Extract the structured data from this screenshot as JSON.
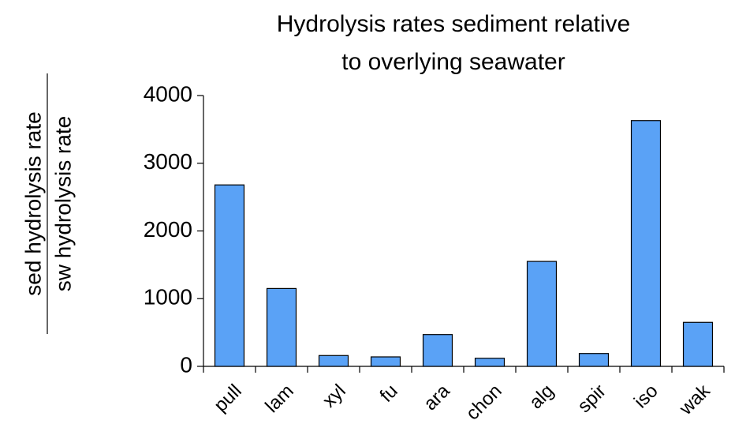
{
  "chart_data": {
    "type": "bar",
    "title": [
      "Hydrolysis rates sediment relative",
      "to overlying seawater"
    ],
    "ylabel": [
      "sed hydrolysis rate",
      "sw hydrolysis rate"
    ],
    "categories": [
      "pull",
      "lam",
      "xyl",
      "fu",
      "ara",
      "chon",
      "alg",
      "spir",
      "iso",
      "wak"
    ],
    "values": [
      2680,
      1150,
      160,
      140,
      470,
      120,
      1550,
      190,
      3630,
      650
    ],
    "color": "#5aa2f6",
    "ylim": [
      0,
      4000
    ],
    "yticks": [
      0,
      1000,
      2000,
      3000,
      4000
    ],
    "grid": false
  }
}
